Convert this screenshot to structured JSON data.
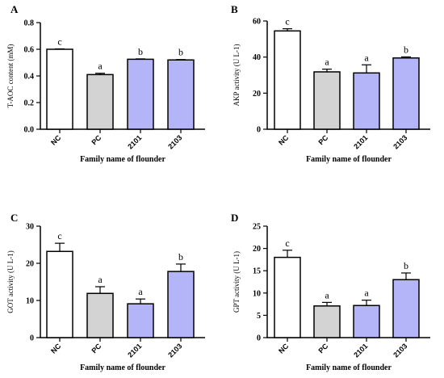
{
  "figure": {
    "bar_fill_colors": [
      "#ffffff",
      "#d3d3d3",
      "#b4b4f8",
      "#b4b4f8"
    ],
    "axis_color": "#000000"
  },
  "chart_data": [
    {
      "type": "bar",
      "panel": "A",
      "categories": [
        "NC",
        "PC",
        "2101",
        "2103"
      ],
      "values": [
        0.6,
        0.41,
        0.525,
        0.52
      ],
      "errors": [
        0.003,
        0.01,
        0.003,
        0.003
      ],
      "significance": [
        "c",
        "a",
        "b",
        "b"
      ],
      "xlabel": "Family name of flounder",
      "ylabel": "T-AOC content (mM)",
      "ylim": [
        0,
        0.8
      ],
      "yticks": [
        0.0,
        0.2,
        0.4,
        0.6,
        0.8
      ],
      "ytick_labels": [
        "0.0",
        "0.2",
        "0.4",
        "0.6",
        "0.8"
      ]
    },
    {
      "type": "bar",
      "panel": "B",
      "categories": [
        "NC",
        "PC",
        "2101",
        "2103"
      ],
      "values": [
        54.5,
        31.8,
        31.2,
        39.5
      ],
      "errors": [
        1.2,
        1.5,
        4.5,
        0.6
      ],
      "significance": [
        "c",
        "a",
        "a",
        "b"
      ],
      "xlabel": "Family name of flounder",
      "ylabel": "AKP activity (U L-1)",
      "ylim": [
        0,
        60
      ],
      "yticks": [
        0,
        20,
        40,
        60
      ],
      "ytick_labels": [
        "0",
        "20",
        "40",
        "60"
      ]
    },
    {
      "type": "bar",
      "panel": "C",
      "categories": [
        "NC",
        "PC",
        "2101",
        "2103"
      ],
      "values": [
        23.2,
        11.9,
        9.1,
        17.8
      ],
      "errors": [
        2.2,
        1.8,
        1.3,
        2.0
      ],
      "significance": [
        "c",
        "a",
        "a",
        "b"
      ],
      "xlabel": "Family name of flounder",
      "ylabel": "GOT activity (U L-1)",
      "ylim": [
        0,
        30
      ],
      "yticks": [
        0,
        10,
        20,
        30
      ],
      "ytick_labels": [
        "0",
        "10",
        "20",
        "30"
      ]
    },
    {
      "type": "bar",
      "panel": "D",
      "categories": [
        "NC",
        "PC",
        "2101",
        "2103"
      ],
      "values": [
        18.0,
        7.1,
        7.2,
        13.0
      ],
      "errors": [
        1.6,
        0.8,
        1.2,
        1.5
      ],
      "significance": [
        "c",
        "a",
        "a",
        "b"
      ],
      "xlabel": "Family name of flounder",
      "ylabel": "GPT activity (U L-1)",
      "ylim": [
        0,
        25
      ],
      "yticks": [
        0,
        5,
        10,
        15,
        20,
        25
      ],
      "ytick_labels": [
        "0",
        "5",
        "10",
        "15",
        "20",
        "25"
      ]
    }
  ]
}
